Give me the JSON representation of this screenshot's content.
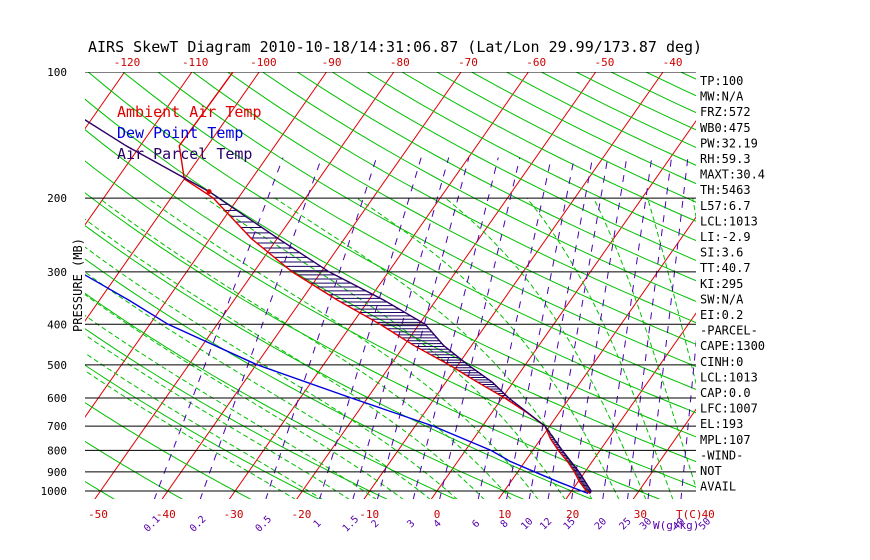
{
  "chart_data": {
    "type": "line",
    "title": "AIRS SkewT Diagram 2010-10-18/14:31:06.87 (Lat/Lon 29.99/173.87 deg)",
    "ylabel": "PRESSURE (MB)",
    "xlabel_bottom_unit": "T(C)",
    "mixing_ratio_unit": "W(g/kg)",
    "pressure_levels": [
      100,
      200,
      300,
      400,
      500,
      600,
      700,
      800,
      900,
      1000
    ],
    "pressure_range": [
      100,
      1050
    ],
    "bottom_temp_ticks": [
      -50,
      -40,
      -30,
      -20,
      -10,
      0,
      10,
      20,
      30,
      40
    ],
    "top_temp_ticks": [
      -120,
      -110,
      -100,
      -90,
      -80,
      -70,
      -60,
      -50,
      -40
    ],
    "mixing_ratio_labels": [
      "0.1",
      "0.2",
      "0.5",
      "1",
      "1.5",
      "2",
      "3",
      "4",
      "6",
      "8",
      "10",
      "12",
      "15",
      "20",
      "25",
      "30",
      "40",
      "50"
    ],
    "mixing_ratio_values": [
      0.1,
      0.2,
      0.5,
      1,
      1.5,
      2,
      3,
      4,
      6,
      8,
      10,
      12,
      15,
      20,
      25,
      30,
      40,
      50
    ],
    "legend": [
      {
        "label": "Ambient Air Temp",
        "color": "#e00000"
      },
      {
        "label": "Dew Point Temp",
        "color": "#0000dd"
      },
      {
        "label": "Air Parcel Temp",
        "color": "#2a0066"
      }
    ],
    "series": [
      {
        "name": "Ambient Air Temp",
        "color": "#e00000",
        "points": [
          [
            100,
            -73.9
          ],
          [
            150,
            -74.2
          ],
          [
            180,
            -70.0
          ],
          [
            200,
            -63.7
          ],
          [
            250,
            -53.8
          ],
          [
            300,
            -44.3
          ],
          [
            350,
            -34.7
          ],
          [
            400,
            -25.8
          ],
          [
            450,
            -18.5
          ],
          [
            500,
            -11.3
          ],
          [
            550,
            -5.3
          ],
          [
            600,
            0.4
          ],
          [
            650,
            5.2
          ],
          [
            700,
            9.3
          ],
          [
            750,
            11.4
          ],
          [
            800,
            13.8
          ],
          [
            850,
            16.3
          ],
          [
            900,
            18.4
          ],
          [
            950,
            20.2
          ],
          [
            1000,
            22.2
          ],
          [
            1013,
            23.0
          ]
        ]
      },
      {
        "name": "Dew Point Temp",
        "color": "#0000dd",
        "points": [
          [
            100,
            -102.5
          ],
          [
            150,
            -101.6
          ],
          [
            190,
            -97.5
          ],
          [
            200,
            -96.7
          ],
          [
            250,
            -83.4
          ],
          [
            300,
            -75.9
          ],
          [
            350,
            -65.7
          ],
          [
            400,
            -57.3
          ],
          [
            500,
            -39.8
          ],
          [
            600,
            -22.4
          ],
          [
            700,
            -7.3
          ],
          [
            800,
            3.8
          ],
          [
            850,
            7.8
          ],
          [
            900,
            12.5
          ],
          [
            950,
            17.0
          ],
          [
            1000,
            21.5
          ],
          [
            1013,
            22.7
          ]
        ]
      },
      {
        "name": "Air Parcel Temp",
        "color": "#2a0066",
        "points": [
          [
            100,
            -109.9
          ],
          [
            120,
            -95.9
          ],
          [
            150,
            -82.1
          ],
          [
            193,
            -65.0
          ],
          [
            250,
            -49.8
          ],
          [
            300,
            -38.8
          ],
          [
            350,
            -27.8
          ],
          [
            400,
            -19.1
          ],
          [
            450,
            -14.1
          ],
          [
            500,
            -8.5
          ],
          [
            550,
            -3.1
          ],
          [
            600,
            1.0
          ],
          [
            700,
            9.3
          ],
          [
            800,
            14.4
          ],
          [
            900,
            19.1
          ],
          [
            1000,
            22.9
          ],
          [
            1013,
            23.0
          ]
        ]
      }
    ],
    "annotations": [
      {
        "label": "EL",
        "pressure": 193,
        "temp": -65.0,
        "color": "#e00000"
      }
    ],
    "stats": [
      "TP:100",
      "MW:N/A",
      "FRZ:572",
      "WB0:475",
      "PW:32.19",
      "RH:59.3",
      "MAXT:30.4",
      "TH:5463",
      "L57:6.7",
      "LCL:1013",
      "LI:-2.9",
      "SI:3.6",
      "TT:40.7",
      "KI:295",
      "SW:N/A",
      "EI:0.2",
      "-PARCEL-",
      "CAPE:1300",
      "CINH:0",
      "LCL:1013",
      "CAP:0.0",
      "LFC:1007",
      "EL:193",
      "MPL:107",
      "-WIND-",
      "NOT",
      "AVAIL"
    ]
  },
  "colors": {
    "isotherm": "#e00000",
    "dry_adiabat": "#00c000",
    "moist_adiabat": "#00c000",
    "mixing_ratio": "#4a00b0",
    "isobar": "#000000",
    "axis_text": "#000000",
    "temp_tick_text": "#cc0000",
    "mixing_text": "#5500aa",
    "hatch": "#1a0060"
  }
}
